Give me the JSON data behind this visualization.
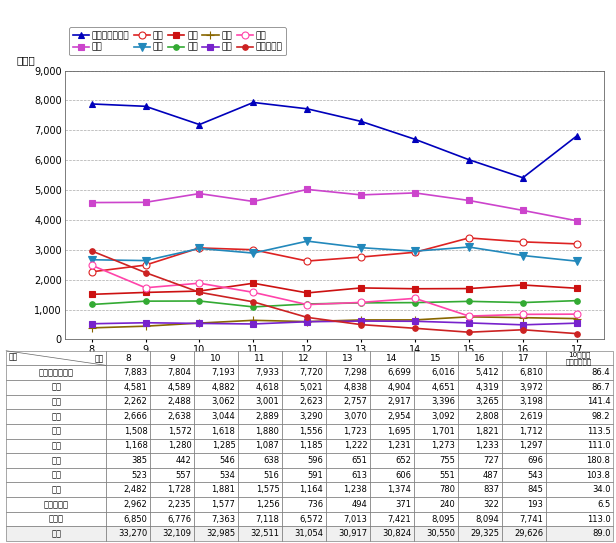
{
  "years": [
    8,
    9,
    10,
    11,
    12,
    13,
    14,
    15,
    16,
    17
  ],
  "series_order": [
    "覚せい剤取締法",
    "傷害",
    "窃盗",
    "恐喝",
    "詐欺",
    "暴行",
    "強盗",
    "脅迫",
    "賭博",
    "ノミ行為等"
  ],
  "series": {
    "覚せい剤取締法": {
      "values": [
        7883,
        7804,
        7193,
        7933,
        7720,
        7298,
        6699,
        6016,
        5412,
        6810
      ],
      "color": "#0000bb",
      "marker": "^",
      "ms": 5,
      "mfc": "#0000bb",
      "lw": 1.2
    },
    "傷害": {
      "values": [
        4581,
        4589,
        4882,
        4618,
        5021,
        4838,
        4904,
        4651,
        4319,
        3972
      ],
      "color": "#cc44cc",
      "marker": "s",
      "ms": 4,
      "mfc": "#cc44cc",
      "lw": 1.2
    },
    "窃盗": {
      "values": [
        2262,
        2488,
        3062,
        3001,
        2623,
        2757,
        2917,
        3396,
        3265,
        3198
      ],
      "color": "#dd2222",
      "marker": "o",
      "ms": 5,
      "mfc": "white",
      "lw": 1.2
    },
    "恐喝": {
      "values": [
        2666,
        2638,
        3044,
        2889,
        3290,
        3070,
        2954,
        3092,
        2808,
        2619
      ],
      "color": "#2288bb",
      "marker": "v",
      "ms": 6,
      "mfc": "#2288bb",
      "lw": 1.2
    },
    "詐欺": {
      "values": [
        1508,
        1572,
        1618,
        1880,
        1556,
        1723,
        1695,
        1701,
        1821,
        1712
      ],
      "color": "#cc1111",
      "marker": "s",
      "ms": 4,
      "mfc": "#cc1111",
      "lw": 1.2
    },
    "暴行": {
      "values": [
        1168,
        1280,
        1285,
        1087,
        1185,
        1222,
        1231,
        1273,
        1233,
        1297
      ],
      "color": "#33aa33",
      "marker": "o",
      "ms": 4,
      "mfc": "#33aa33",
      "lw": 1.2
    },
    "強盗": {
      "values": [
        385,
        442,
        546,
        638,
        596,
        651,
        652,
        755,
        727,
        696
      ],
      "color": "#886600",
      "marker": "+",
      "ms": 6,
      "mfc": "#886600",
      "lw": 1.2
    },
    "脅迫": {
      "values": [
        523,
        557,
        534,
        516,
        591,
        613,
        606,
        551,
        487,
        543
      ],
      "color": "#7722cc",
      "marker": "s",
      "ms": 4,
      "mfc": "#7722cc",
      "lw": 1.2
    },
    "賭博": {
      "values": [
        2482,
        1728,
        1881,
        1575,
        1164,
        1238,
        1374,
        780,
        837,
        845
      ],
      "color": "#ff44aa",
      "marker": "o",
      "ms": 5,
      "mfc": "white",
      "lw": 1.2
    },
    "ノミ行為等": {
      "values": [
        2962,
        2235,
        1577,
        1256,
        736,
        494,
        371,
        240,
        322,
        193
      ],
      "color": "#cc2222",
      "marker": "o",
      "ms": 4,
      "mfc": "#cc2222",
      "lw": 1.2
    }
  },
  "legend_row1": [
    "覚せい剤取締法",
    "傷害",
    "窃盗",
    "恐喝",
    "詐欺"
  ],
  "legend_row2": [
    "暴行",
    "強盗",
    "脅迫",
    "賭博",
    "ノミ行為等"
  ],
  "table_rows": [
    "覚せい剤取締法",
    "傷害",
    "窃盗",
    "恐喝",
    "詐欺",
    "暴行",
    "強盗",
    "脅迫",
    "賭博",
    "ノミ行為等",
    "その他",
    "合計"
  ],
  "table_data": {
    "覚せい剤取締法": [
      7883,
      7804,
      7193,
      7933,
      7720,
      7298,
      6699,
      6016,
      5412,
      6810,
      "86.4"
    ],
    "傷害": [
      4581,
      4589,
      4882,
      4618,
      5021,
      4838,
      4904,
      4651,
      4319,
      3972,
      "86.7"
    ],
    "窃盗": [
      2262,
      2488,
      3062,
      3001,
      2623,
      2757,
      2917,
      3396,
      3265,
      3198,
      "141.4"
    ],
    "恐喝": [
      2666,
      2638,
      3044,
      2889,
      3290,
      3070,
      2954,
      3092,
      2808,
      2619,
      "98.2"
    ],
    "詐欺": [
      1508,
      1572,
      1618,
      1880,
      1556,
      1723,
      1695,
      1701,
      1821,
      1712,
      "113.5"
    ],
    "暴行": [
      1168,
      1280,
      1285,
      1087,
      1185,
      1222,
      1231,
      1273,
      1233,
      1297,
      "111.0"
    ],
    "強盗": [
      385,
      442,
      546,
      638,
      596,
      651,
      652,
      755,
      727,
      696,
      "180.8"
    ],
    "脅迫": [
      523,
      557,
      534,
      516,
      591,
      613,
      606,
      551,
      487,
      543,
      "103.8"
    ],
    "賭博": [
      2482,
      1728,
      1881,
      1575,
      1164,
      1238,
      1374,
      780,
      837,
      845,
      "34.0"
    ],
    "ノミ行為等": [
      2962,
      2235,
      1577,
      1256,
      736,
      494,
      371,
      240,
      322,
      193,
      "6.5"
    ],
    "その他": [
      6850,
      6776,
      7363,
      7118,
      6572,
      7013,
      7421,
      8095,
      8094,
      7741,
      "113.0"
    ],
    "合計": [
      33270,
      32109,
      32985,
      32511,
      31054,
      30917,
      30824,
      30550,
      29325,
      29626,
      "89.0"
    ]
  },
  "ylabel": "（人）",
  "ylim": [
    0,
    9000
  ],
  "yticks": [
    0,
    1000,
    2000,
    3000,
    4000,
    5000,
    6000,
    7000,
    8000,
    9000
  ]
}
